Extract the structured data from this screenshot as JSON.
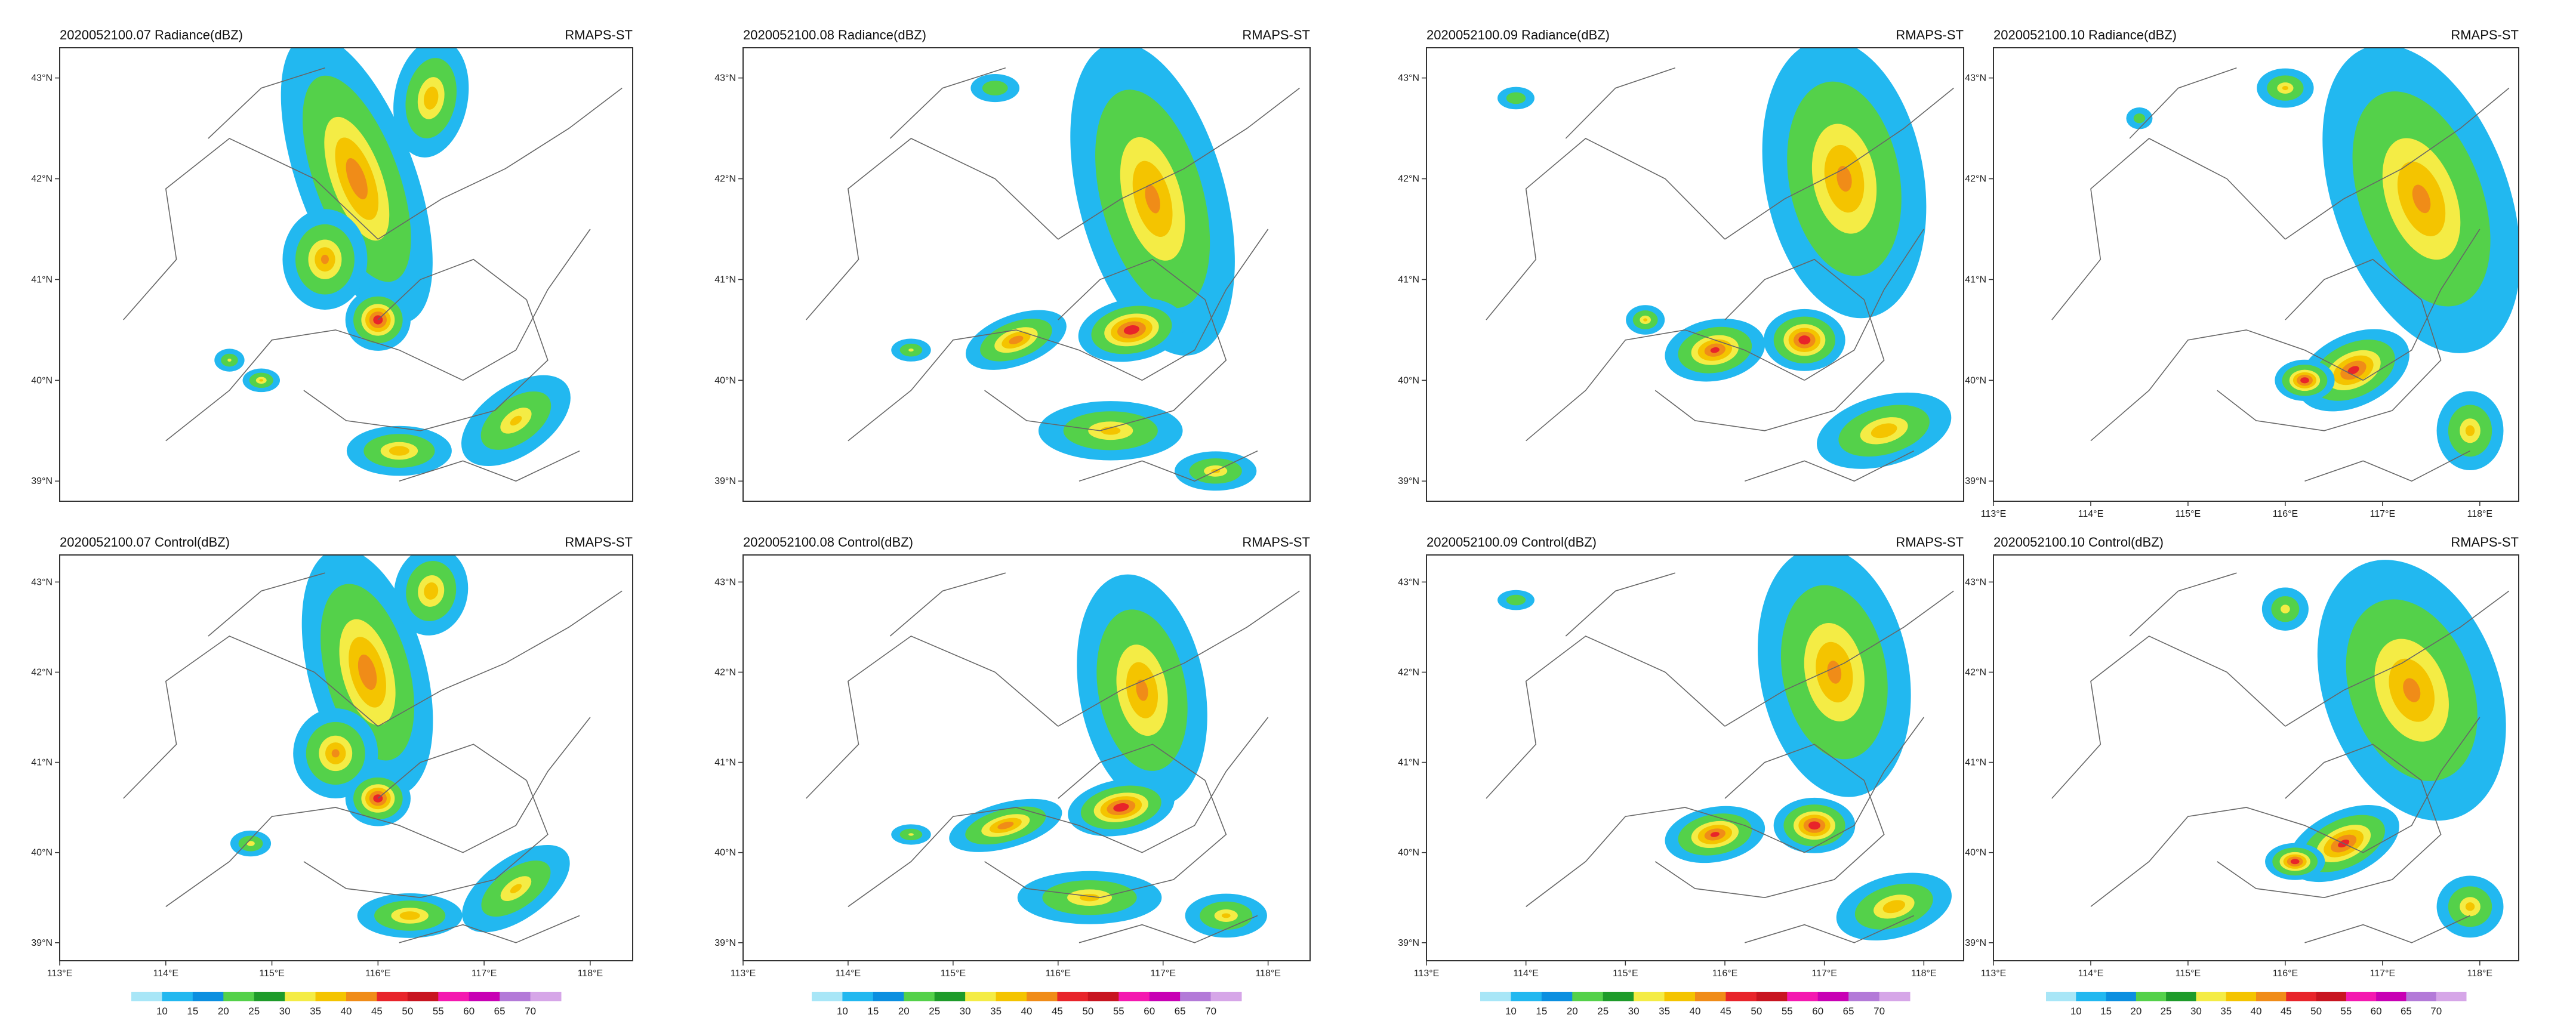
{
  "figure": {
    "model_label": "RMAPS-ST",
    "units": "dBZ"
  },
  "colors": {
    "levels": [
      10,
      15,
      20,
      25,
      30,
      35,
      40,
      45,
      50,
      55,
      60,
      65,
      70
    ],
    "fill": [
      "#a8e6f7",
      "#22b8f0",
      "#0b8fe0",
      "#54d14a",
      "#1e9b2a",
      "#f4ec45",
      "#f4c400",
      "#f08c18",
      "#e8242a",
      "#c81420",
      "#f418b0",
      "#c800b4",
      "#b37ad8",
      "#d6a6e8"
    ]
  },
  "axes": {
    "lon_ticks": [
      "113°E",
      "114°E",
      "115°E",
      "116°E",
      "117°E",
      "118°E"
    ],
    "lat_ticks": [
      "39°N",
      "40°N",
      "41°N",
      "42°N",
      "43°N"
    ],
    "lon_values": [
      113,
      114,
      115,
      116,
      117,
      118
    ],
    "lat_values": [
      39,
      40,
      41,
      42,
      43
    ]
  },
  "chart_data": [
    {
      "type": "heatmap",
      "row": "top",
      "col": 0,
      "title": "2020052100.07 Radiance(dBZ)",
      "show_lon_ticks": false,
      "blobs": [
        [
          115.8,
          42.0,
          0.55,
          1.5,
          -20,
          42
        ],
        [
          116.5,
          42.8,
          0.35,
          0.6,
          10,
          38
        ],
        [
          115.5,
          41.2,
          0.4,
          0.5,
          0,
          40
        ],
        [
          116.0,
          40.6,
          0.3,
          0.3,
          0,
          48
        ],
        [
          117.3,
          39.6,
          0.6,
          0.35,
          -35,
          35
        ],
        [
          116.2,
          39.3,
          0.5,
          0.25,
          0,
          38
        ],
        [
          114.6,
          40.2,
          0.15,
          0.12,
          0,
          30
        ],
        [
          114.9,
          40.0,
          0.18,
          0.12,
          0,
          35
        ]
      ]
    },
    {
      "type": "heatmap",
      "row": "top",
      "col": 1,
      "title": "2020052100.08 Radiance(dBZ)",
      "show_lon_ticks": false,
      "blobs": [
        [
          116.9,
          41.8,
          0.7,
          1.6,
          -15,
          40
        ],
        [
          116.7,
          40.5,
          0.5,
          0.3,
          -10,
          48
        ],
        [
          115.6,
          40.4,
          0.5,
          0.25,
          -20,
          42
        ],
        [
          116.5,
          39.5,
          0.7,
          0.3,
          0,
          36
        ],
        [
          114.6,
          40.3,
          0.2,
          0.12,
          0,
          30
        ],
        [
          115.4,
          42.9,
          0.25,
          0.15,
          0,
          28
        ],
        [
          117.5,
          39.1,
          0.4,
          0.2,
          0,
          35
        ]
      ]
    },
    {
      "type": "heatmap",
      "row": "top",
      "col": 2,
      "title": "2020052100.09 Radiance(dBZ)",
      "show_lon_ticks": false,
      "blobs": [
        [
          117.2,
          42.0,
          0.8,
          1.4,
          -10,
          40
        ],
        [
          116.8,
          40.4,
          0.4,
          0.3,
          0,
          48
        ],
        [
          115.9,
          40.3,
          0.5,
          0.3,
          -10,
          45
        ],
        [
          115.2,
          40.6,
          0.2,
          0.15,
          0,
          35
        ],
        [
          117.6,
          39.5,
          0.7,
          0.35,
          -15,
          38
        ],
        [
          113.9,
          42.8,
          0.2,
          0.12,
          0,
          28
        ]
      ]
    },
    {
      "type": "heatmap",
      "row": "top",
      "col": 3,
      "title": "2020052100.10 Radiance(dBZ)",
      "show_lon_ticks": true,
      "blobs": [
        [
          117.4,
          41.8,
          0.9,
          1.6,
          -20,
          40
        ],
        [
          116.7,
          40.1,
          0.6,
          0.35,
          -25,
          46
        ],
        [
          116.2,
          40.0,
          0.3,
          0.2,
          0,
          48
        ],
        [
          117.9,
          39.5,
          0.35,
          0.4,
          0,
          36
        ],
        [
          116.0,
          42.9,
          0.3,
          0.2,
          0,
          35
        ],
        [
          114.5,
          42.6,
          0.15,
          0.12,
          0,
          25
        ]
      ]
    },
    {
      "type": "heatmap",
      "row": "bottom",
      "col": 0,
      "title": "2020052100.07 Control(dBZ)",
      "show_lon_ticks": true,
      "blobs": [
        [
          115.9,
          42.0,
          0.55,
          1.4,
          -15,
          42
        ],
        [
          116.5,
          42.9,
          0.35,
          0.5,
          10,
          38
        ],
        [
          115.6,
          41.1,
          0.4,
          0.5,
          0,
          40
        ],
        [
          116.0,
          40.6,
          0.3,
          0.3,
          0,
          48
        ],
        [
          117.3,
          39.6,
          0.6,
          0.35,
          -35,
          35
        ],
        [
          116.3,
          39.3,
          0.5,
          0.25,
          0,
          38
        ],
        [
          114.8,
          40.1,
          0.2,
          0.15,
          0,
          32
        ]
      ]
    },
    {
      "type": "heatmap",
      "row": "bottom",
      "col": 1,
      "title": "2020052100.08 Control(dBZ)",
      "show_lon_ticks": true,
      "blobs": [
        [
          116.8,
          41.8,
          0.6,
          1.3,
          -10,
          40
        ],
        [
          116.6,
          40.5,
          0.5,
          0.3,
          -10,
          48
        ],
        [
          115.5,
          40.3,
          0.55,
          0.25,
          -15,
          42
        ],
        [
          116.3,
          39.5,
          0.7,
          0.3,
          0,
          36
        ],
        [
          117.6,
          39.3,
          0.4,
          0.25,
          0,
          35
        ],
        [
          114.6,
          40.2,
          0.2,
          0.12,
          0,
          30
        ]
      ]
    },
    {
      "type": "heatmap",
      "row": "bottom",
      "col": 2,
      "title": "2020052100.09 Control(dBZ)",
      "show_lon_ticks": true,
      "blobs": [
        [
          117.1,
          42.0,
          0.75,
          1.4,
          -10,
          40
        ],
        [
          116.9,
          40.3,
          0.4,
          0.3,
          0,
          48
        ],
        [
          115.9,
          40.2,
          0.5,
          0.3,
          -10,
          45
        ],
        [
          117.7,
          39.4,
          0.6,
          0.35,
          -15,
          38
        ],
        [
          113.9,
          42.8,
          0.2,
          0.12,
          0,
          28
        ]
      ]
    },
    {
      "type": "heatmap",
      "row": "bottom",
      "col": 3,
      "title": "2020052100.10 Control(dBZ)",
      "show_lon_ticks": true,
      "blobs": [
        [
          117.3,
          41.8,
          0.9,
          1.5,
          -20,
          40
        ],
        [
          116.6,
          40.1,
          0.6,
          0.35,
          -25,
          46
        ],
        [
          116.1,
          39.9,
          0.3,
          0.2,
          0,
          48
        ],
        [
          117.9,
          39.4,
          0.35,
          0.35,
          0,
          36
        ],
        [
          116.0,
          42.7,
          0.25,
          0.25,
          0,
          32
        ]
      ]
    }
  ]
}
